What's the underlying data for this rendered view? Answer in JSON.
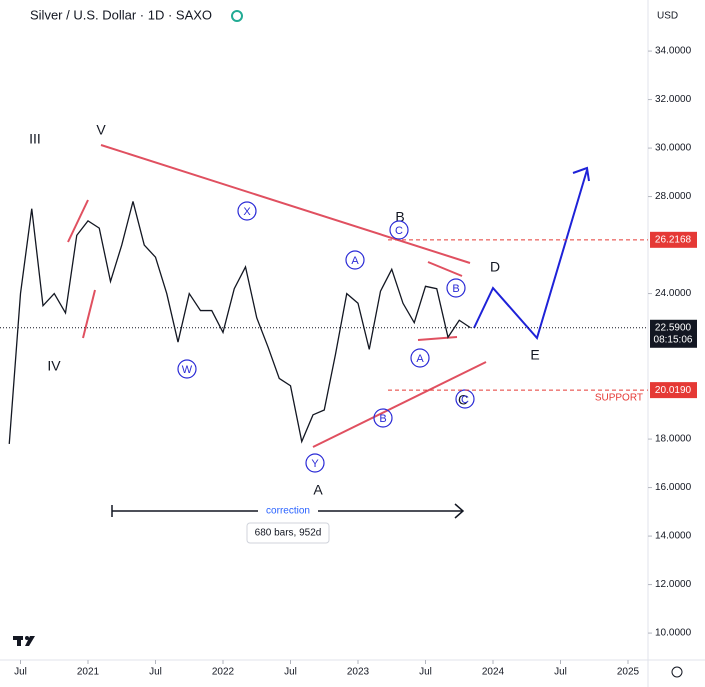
{
  "chart_data": {
    "type": "line",
    "title": "Silver / U.S. Dollar · 1D · SAXO",
    "currency": "USD",
    "x": [
      "2020-06",
      "2020-07",
      "2020-08",
      "2020-09",
      "2020-10",
      "2020-11",
      "2020-12",
      "2021-01",
      "2021-02",
      "2021-03",
      "2021-04",
      "2021-05",
      "2021-06",
      "2021-07",
      "2021-08",
      "2021-09",
      "2021-10",
      "2021-11",
      "2021-12",
      "2022-01",
      "2022-02",
      "2022-03",
      "2022-04",
      "2022-05",
      "2022-06",
      "2022-07",
      "2022-08",
      "2022-09",
      "2022-10",
      "2022-11",
      "2022-12",
      "2023-01",
      "2023-02",
      "2023-03",
      "2023-04",
      "2023-05",
      "2023-06",
      "2023-07",
      "2023-08",
      "2023-09",
      "2023-10",
      "2023-11"
    ],
    "series": [
      {
        "name": "Silver",
        "color": "#131722",
        "values": [
          17.8,
          24,
          27.5,
          23.5,
          24,
          23.2,
          26.4,
          27,
          26.7,
          24.5,
          26,
          27.8,
          26,
          25.5,
          24,
          22,
          24,
          23.3,
          23.3,
          22.4,
          24.2,
          25.1,
          23,
          21.8,
          20.5,
          20.2,
          17.9,
          19,
          19.2,
          21.5,
          24,
          23.6,
          21.7,
          24.1,
          25,
          23.6,
          22.8,
          24.3,
          24.2,
          22.2,
          22.9,
          22.59
        ]
      }
    ],
    "ylim": [
      8.89,
      35.9
    ],
    "yticks": [
      {
        "value": 34,
        "label": "34.0000"
      },
      {
        "value": 32,
        "label": "32.0000"
      },
      {
        "value": 30,
        "label": "30.0000"
      },
      {
        "value": 28,
        "label": "28.0000"
      },
      {
        "value": 24,
        "label": "24.0000"
      },
      {
        "value": 18,
        "label": "18.0000"
      },
      {
        "value": 16,
        "label": "16.0000"
      },
      {
        "value": 14,
        "label": "14.0000"
      },
      {
        "value": 12,
        "label": "12.0000"
      },
      {
        "value": 10,
        "label": "10.0000"
      }
    ],
    "xticks": [
      {
        "value": "2020-07",
        "label": "Jul"
      },
      {
        "value": "2021-01",
        "label": "2021"
      },
      {
        "value": "2021-07",
        "label": "Jul"
      },
      {
        "value": "2022-01",
        "label": "2022"
      },
      {
        "value": "2022-07",
        "label": "Jul"
      },
      {
        "value": "2023-01",
        "label": "2023"
      },
      {
        "value": "2023-07",
        "label": "Jul"
      },
      {
        "value": "2024-01",
        "label": "2024"
      },
      {
        "value": "2024-07",
        "label": "Jul"
      },
      {
        "value": "2025-01",
        "label": "2025"
      }
    ],
    "levels": [
      {
        "value": 26.2168,
        "label": "26.2168",
        "color": "#e53935"
      },
      {
        "value": 20.019,
        "label": "20.0190",
        "color": "#e53935"
      }
    ],
    "last_price": {
      "value": 22.59,
      "label": "22.5900",
      "countdown": "08:15:06"
    },
    "annotations": [
      "III",
      "V",
      "IV",
      "A",
      "B",
      "C",
      "D",
      "E",
      "X",
      "W",
      "Y",
      "A",
      "C",
      "B",
      "A",
      "B",
      "C",
      "SUPPORT",
      "correction",
      "680 bars, 952d"
    ]
  }
}
